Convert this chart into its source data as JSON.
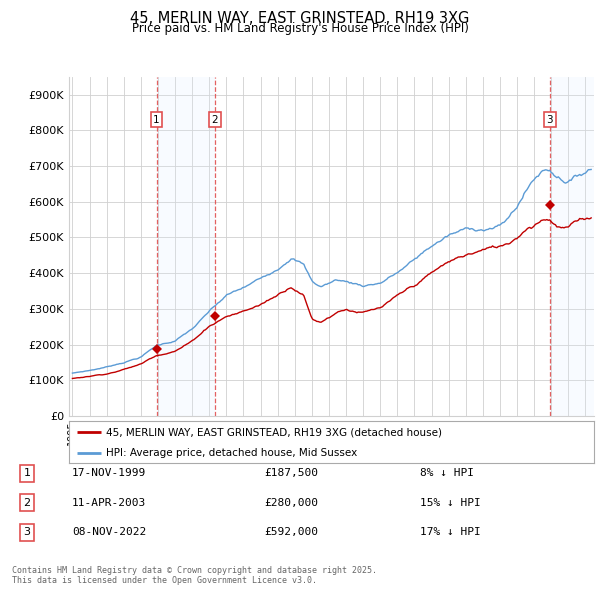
{
  "title": "45, MERLIN WAY, EAST GRINSTEAD, RH19 3XG",
  "subtitle": "Price paid vs. HM Land Registry's House Price Index (HPI)",
  "ylim": [
    0,
    950000
  ],
  "yticks": [
    0,
    100000,
    200000,
    300000,
    400000,
    500000,
    600000,
    700000,
    800000,
    900000
  ],
  "ytick_labels": [
    "£0",
    "£100K",
    "£200K",
    "£300K",
    "£400K",
    "£500K",
    "£600K",
    "£700K",
    "£800K",
    "£900K"
  ],
  "legend_label_red": "45, MERLIN WAY, EAST GRINSTEAD, RH19 3XG (detached house)",
  "legend_label_blue": "HPI: Average price, detached house, Mid Sussex",
  "footer": "Contains HM Land Registry data © Crown copyright and database right 2025.\nThis data is licensed under the Open Government Licence v3.0.",
  "sale_prices": [
    187500,
    280000,
    592000
  ],
  "sale_labels": [
    "1",
    "2",
    "3"
  ],
  "sale_info": [
    [
      "1",
      "17-NOV-1999",
      "£187,500",
      "8% ↓ HPI"
    ],
    [
      "2",
      "11-APR-2003",
      "£280,000",
      "15% ↓ HPI"
    ],
    [
      "3",
      "08-NOV-2022",
      "£592,000",
      "17% ↓ HPI"
    ]
  ],
  "hpi_color": "#5b9bd5",
  "price_color": "#c00000",
  "background_color": "#ffffff",
  "grid_color": "#d0d0d0",
  "dashed_line_color": "#e05050",
  "shade_color": "#ddeeff"
}
